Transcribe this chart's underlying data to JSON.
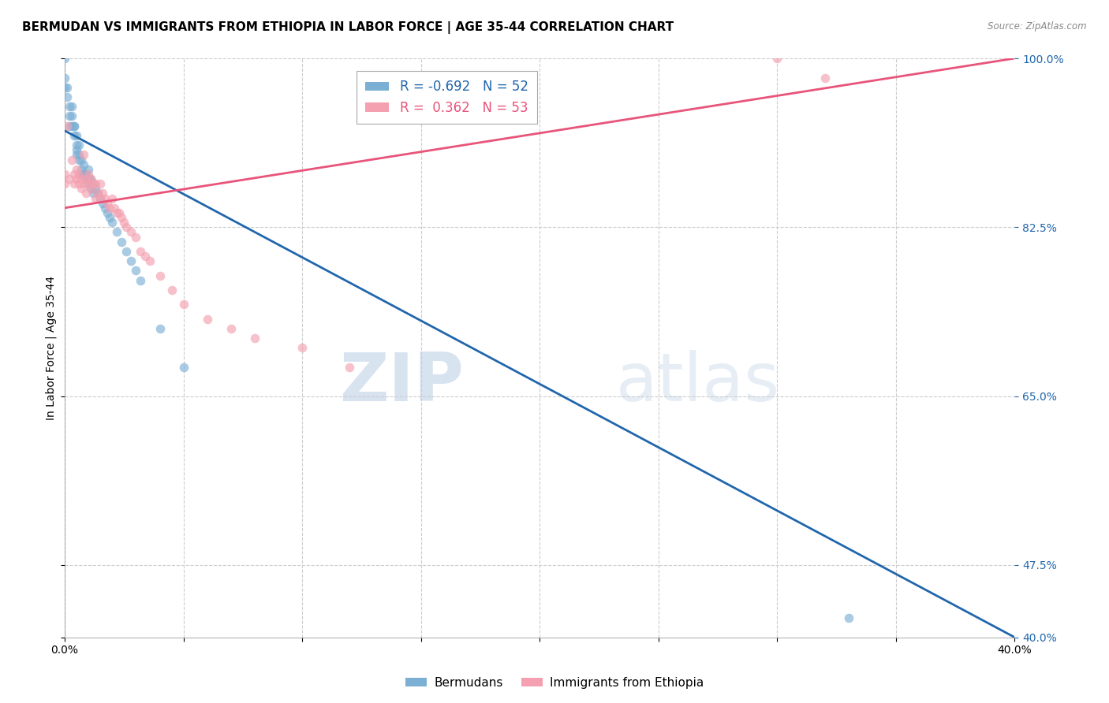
{
  "title": "BERMUDAN VS IMMIGRANTS FROM ETHIOPIA IN LABOR FORCE | AGE 35-44 CORRELATION CHART",
  "source": "Source: ZipAtlas.com",
  "ylabel": "In Labor Force | Age 35-44",
  "watermark_zip": "ZIP",
  "watermark_atlas": "atlas",
  "xlim": [
    0.0,
    0.4
  ],
  "ylim": [
    0.4,
    1.0
  ],
  "xtick_positions": [
    0.0,
    0.05,
    0.1,
    0.15,
    0.2,
    0.25,
    0.3,
    0.35,
    0.4
  ],
  "xtick_labels": [
    "0.0%",
    "",
    "",
    "",
    "",
    "",
    "",
    "",
    "40.0%"
  ],
  "yticks_right": [
    1.0,
    0.825,
    0.65,
    0.475,
    0.4
  ],
  "ytick_right_labels": [
    "100.0%",
    "82.5%",
    "65.0%",
    "47.5%",
    "40.0%"
  ],
  "blue_R": -0.692,
  "blue_N": 52,
  "pink_R": 0.362,
  "pink_N": 53,
  "blue_color": "#7bafd4",
  "pink_color": "#f4a0b0",
  "blue_line_color": "#2166ac",
  "pink_line_color": "#e8547a",
  "blue_scatter_x": [
    0.0,
    0.0,
    0.0,
    0.001,
    0.001,
    0.002,
    0.002,
    0.002,
    0.003,
    0.003,
    0.003,
    0.004,
    0.004,
    0.004,
    0.005,
    0.005,
    0.005,
    0.005,
    0.006,
    0.006,
    0.006,
    0.007,
    0.007,
    0.007,
    0.008,
    0.008,
    0.009,
    0.009,
    0.01,
    0.01,
    0.01,
    0.011,
    0.011,
    0.012,
    0.012,
    0.013,
    0.014,
    0.015,
    0.016,
    0.017,
    0.018,
    0.019,
    0.02,
    0.022,
    0.024,
    0.026,
    0.028,
    0.03,
    0.032,
    0.04,
    0.05,
    0.33
  ],
  "blue_scatter_y": [
    1.0,
    0.98,
    0.97,
    0.96,
    0.97,
    0.95,
    0.94,
    0.93,
    0.95,
    0.94,
    0.93,
    0.93,
    0.93,
    0.92,
    0.92,
    0.91,
    0.905,
    0.9,
    0.91,
    0.9,
    0.895,
    0.895,
    0.885,
    0.88,
    0.89,
    0.88,
    0.88,
    0.875,
    0.885,
    0.875,
    0.87,
    0.875,
    0.865,
    0.87,
    0.86,
    0.865,
    0.86,
    0.855,
    0.85,
    0.845,
    0.84,
    0.835,
    0.83,
    0.82,
    0.81,
    0.8,
    0.79,
    0.78,
    0.77,
    0.72,
    0.68,
    0.42
  ],
  "pink_scatter_x": [
    0.0,
    0.0,
    0.001,
    0.002,
    0.003,
    0.004,
    0.004,
    0.005,
    0.005,
    0.006,
    0.006,
    0.007,
    0.007,
    0.008,
    0.008,
    0.009,
    0.009,
    0.01,
    0.01,
    0.011,
    0.011,
    0.012,
    0.013,
    0.013,
    0.014,
    0.015,
    0.015,
    0.016,
    0.017,
    0.018,
    0.019,
    0.02,
    0.021,
    0.022,
    0.023,
    0.024,
    0.025,
    0.026,
    0.028,
    0.03,
    0.032,
    0.034,
    0.036,
    0.04,
    0.045,
    0.05,
    0.06,
    0.07,
    0.08,
    0.1,
    0.12,
    0.3,
    0.32
  ],
  "pink_scatter_y": [
    0.88,
    0.87,
    0.93,
    0.875,
    0.895,
    0.88,
    0.87,
    0.885,
    0.875,
    0.88,
    0.87,
    0.875,
    0.865,
    0.9,
    0.87,
    0.875,
    0.86,
    0.88,
    0.87,
    0.875,
    0.865,
    0.87,
    0.87,
    0.855,
    0.86,
    0.87,
    0.855,
    0.86,
    0.855,
    0.85,
    0.845,
    0.855,
    0.845,
    0.84,
    0.84,
    0.835,
    0.83,
    0.825,
    0.82,
    0.815,
    0.8,
    0.795,
    0.79,
    0.775,
    0.76,
    0.745,
    0.73,
    0.72,
    0.71,
    0.7,
    0.68,
    1.0,
    0.98
  ],
  "blue_trend_x": [
    0.0,
    0.4
  ],
  "blue_trend_y": [
    0.925,
    0.4
  ],
  "pink_trend_x": [
    0.0,
    0.4
  ],
  "pink_trend_y": [
    0.845,
    1.0
  ],
  "legend_labels": [
    "Bermudans",
    "Immigrants from Ethiopia"
  ],
  "title_fontsize": 11,
  "axis_label_fontsize": 10,
  "tick_fontsize": 10,
  "background_color": "#ffffff",
  "grid_color": "#cccccc",
  "right_tick_color": "#2166ac"
}
